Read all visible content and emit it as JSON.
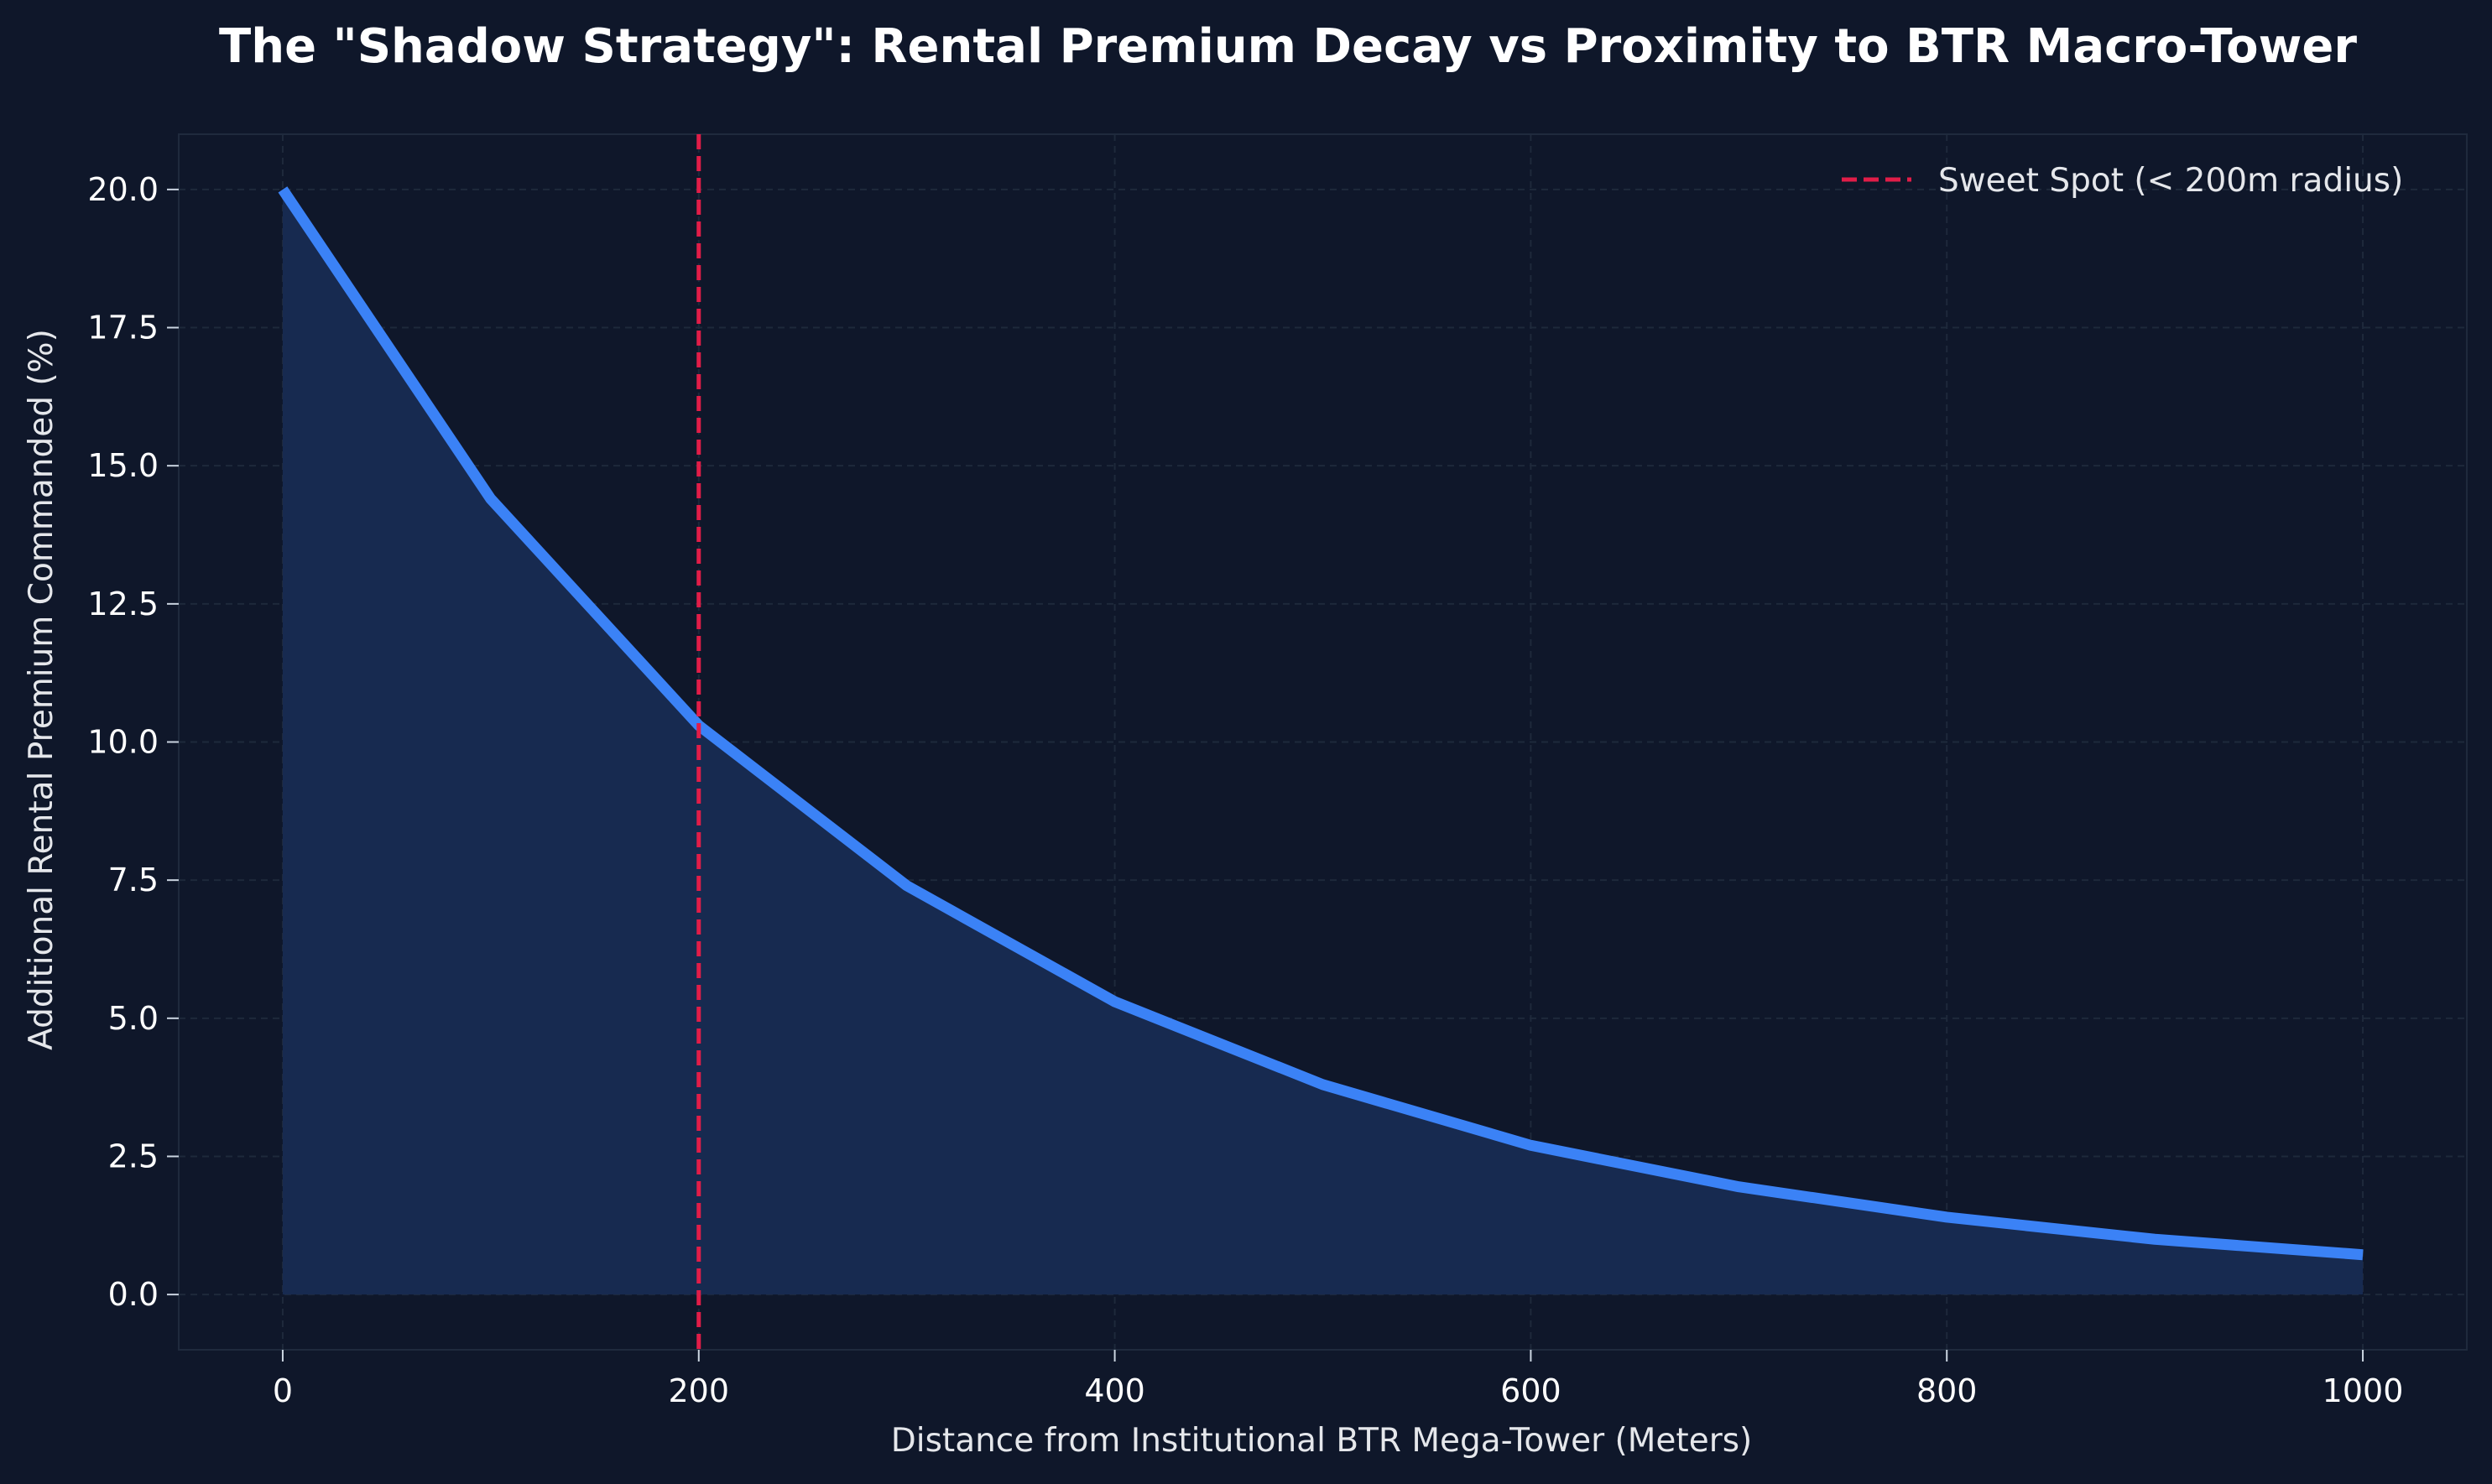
{
  "chart_data": {
    "type": "area",
    "title": "The \"Shadow Strategy\": Rental Premium Decay vs Proximity to BTR Macro-Tower",
    "xlabel": "Distance from Institutional BTR Mega-Tower (Meters)",
    "ylabel": "Additional Rental Premium Commanded (%)",
    "x": [
      0,
      100,
      200,
      300,
      400,
      500,
      600,
      700,
      800,
      900,
      1000
    ],
    "series": [
      {
        "values": [
          20.0,
          14.4,
          10.3,
          7.4,
          5.3,
          3.8,
          2.7,
          1.95,
          1.4,
          1.0,
          0.72
        ]
      }
    ],
    "xlim": [
      -50,
      1050
    ],
    "ylim": [
      -1.0,
      21.0
    ],
    "xticks": [
      0,
      200,
      400,
      600,
      800,
      1000
    ],
    "xtick_labels": [
      "0",
      "200",
      "400",
      "600",
      "800",
      "1000"
    ],
    "yticks": [
      0,
      2.5,
      5,
      7.5,
      10,
      12.5,
      15,
      17.5,
      20
    ],
    "ytick_labels": [
      "0.0",
      "2.5",
      "5.0",
      "7.5",
      "10.0",
      "12.5",
      "15.0",
      "17.5",
      "20.0"
    ],
    "grid": true,
    "reference_line": {
      "x": 200,
      "label": "Sweet Spot (< 200m radius)",
      "style": "dashed"
    },
    "legend_position": "top-right",
    "colors": {
      "background": "#0f172a",
      "plot_background": "#0f172a",
      "line": "#3b82f6",
      "fill": "#172a50",
      "reference_line": "#e11d48",
      "grid": "#1e293b",
      "spine": "#1f2a3d",
      "text": "#ffffff"
    }
  }
}
